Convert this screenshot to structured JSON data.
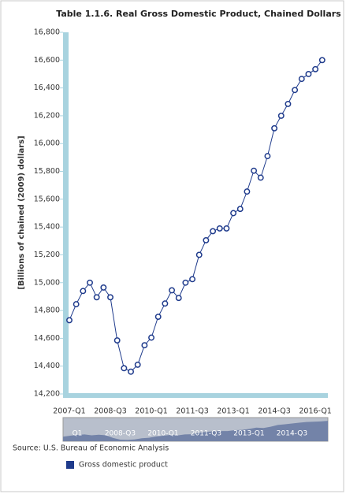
{
  "chart_data": {
    "type": "line",
    "title": "Table 1.1.6. Real Gross Domestic Product, Chained Dollars",
    "y_label": "[Billions of chained (2009) dollars]",
    "source": "Source: U.S. Bureau of Economic Analysis",
    "categories": [
      "2007-Q1",
      null,
      null,
      null,
      null,
      null,
      "2008-Q3",
      null,
      null,
      null,
      null,
      null,
      "2010-Q1",
      null,
      null,
      null,
      null,
      null,
      "2011-Q3",
      null,
      null,
      null,
      null,
      null,
      "2013-Q1",
      null,
      null,
      null,
      null,
      null,
      "2014-Q3",
      null,
      null,
      null,
      null,
      null,
      "2016-Q1",
      null
    ],
    "series": [
      {
        "name": "Gross domestic product",
        "color": "#1f3b8c",
        "values": [
          14730,
          14845,
          14940,
          15000,
          14895,
          14965,
          14895,
          14585,
          14385,
          14360,
          14410,
          14550,
          14605,
          14755,
          14850,
          14945,
          14890,
          15000,
          15025,
          15200,
          15305,
          15370,
          15390,
          15390,
          15500,
          15530,
          15655,
          15805,
          15755,
          15910,
          16110,
          16200,
          16285,
          16385,
          16465,
          16500,
          16535,
          16600
        ]
      }
    ],
    "ylim": [
      14200,
      16800
    ],
    "yticks": [
      {
        "value": 14200,
        "label": "14,200"
      },
      {
        "value": 14400,
        "label": "14,400"
      },
      {
        "value": 14600,
        "label": "14,600"
      },
      {
        "value": 14800,
        "label": "14,800"
      },
      {
        "value": 15000,
        "label": "15,000"
      },
      {
        "value": 15200,
        "label": "15,200"
      },
      {
        "value": 15400,
        "label": "15,400"
      },
      {
        "value": 15600,
        "label": "15,600"
      },
      {
        "value": 15800,
        "label": "15,800"
      },
      {
        "value": 16000,
        "label": "16,000"
      },
      {
        "value": 16200,
        "label": "16,200"
      },
      {
        "value": 16400,
        "label": "16,400"
      },
      {
        "value": 16600,
        "label": "16,600"
      },
      {
        "value": 16800,
        "label": "16,800"
      }
    ],
    "grid": false,
    "legend": "bottom-left",
    "navigator_labels": [
      "Q1",
      "2008-Q3",
      "2010-Q1",
      "2011-Q3",
      "2013-Q1",
      "2014-Q3"
    ]
  }
}
